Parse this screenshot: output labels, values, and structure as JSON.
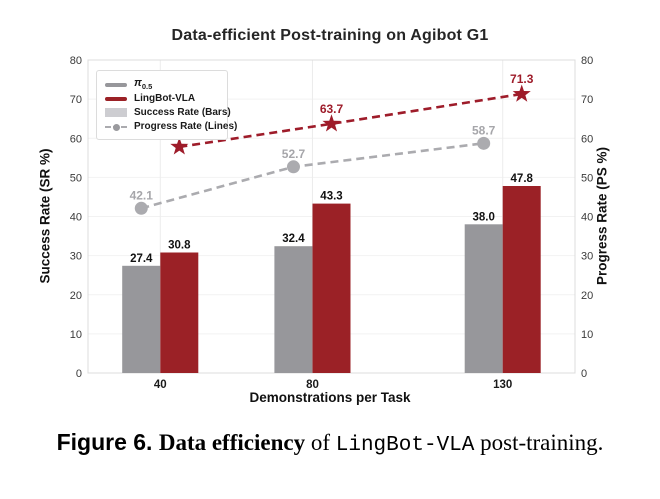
{
  "chart_data": {
    "type": "bar",
    "title": "Data-efficient Post-training on Agibot G1",
    "xlabel": "Demonstrations per Task",
    "ylabel_left": "Success Rate (SR %)",
    "ylabel_right": "Progress Rate (PS %)",
    "categories": [
      40,
      80,
      130
    ],
    "x_tick_labels": [
      "40",
      "80",
      "130"
    ],
    "xlim": [
      21,
      149
    ],
    "ylim": [
      0,
      80
    ],
    "yticks": [
      0,
      10,
      20,
      30,
      40,
      50,
      60,
      70,
      80
    ],
    "grid": true,
    "legend_position": "upper-left",
    "bar_width_units": 10,
    "bar_series": [
      {
        "name": "pi-0.5",
        "values": [
          27.4,
          32.4,
          38.0
        ],
        "color": "#97979B",
        "offset_units": -5,
        "label_color": "#111111"
      },
      {
        "name": "LingBot-VLA",
        "values": [
          30.8,
          43.3,
          47.8
        ],
        "color": "#9B2126",
        "offset_units": 5,
        "label_color": "#111111"
      }
    ],
    "line_series": [
      {
        "name": "pi-0.5 progress rate",
        "values": [
          42.1,
          52.7,
          58.7
        ],
        "color": "#ABABAF",
        "marker": "circle",
        "offset_units": -5,
        "label_color": "#A6A6AA"
      },
      {
        "name": "LingBot-VLA progress rate",
        "values": [
          57.8,
          63.7,
          71.3
        ],
        "color": "#9E1C2A",
        "marker": "star",
        "offset_units": 5,
        "label_color": "#9E1C2A"
      }
    ],
    "legend": {
      "items": [
        {
          "label_symbol": "π",
          "label_sub": "0.5",
          "swatch": "thick-line-gray",
          "color": "#97979B"
        },
        {
          "label": "LingBot-VLA",
          "swatch": "thick-line-red",
          "color": "#9B2126"
        },
        {
          "label": "Success Rate (Bars)",
          "swatch": "patch",
          "color": "#CDCDD1"
        },
        {
          "label": "Progress Rate (Lines)",
          "swatch": "dashed-line-circle",
          "color": "#ABABAF"
        }
      ]
    }
  },
  "caption": {
    "fig_label": "Figure 6.",
    "bold_text": "Data efficiency",
    "mid_text": " of ",
    "code_text": "LingBot-VLA",
    "tail_text": " post-training."
  }
}
